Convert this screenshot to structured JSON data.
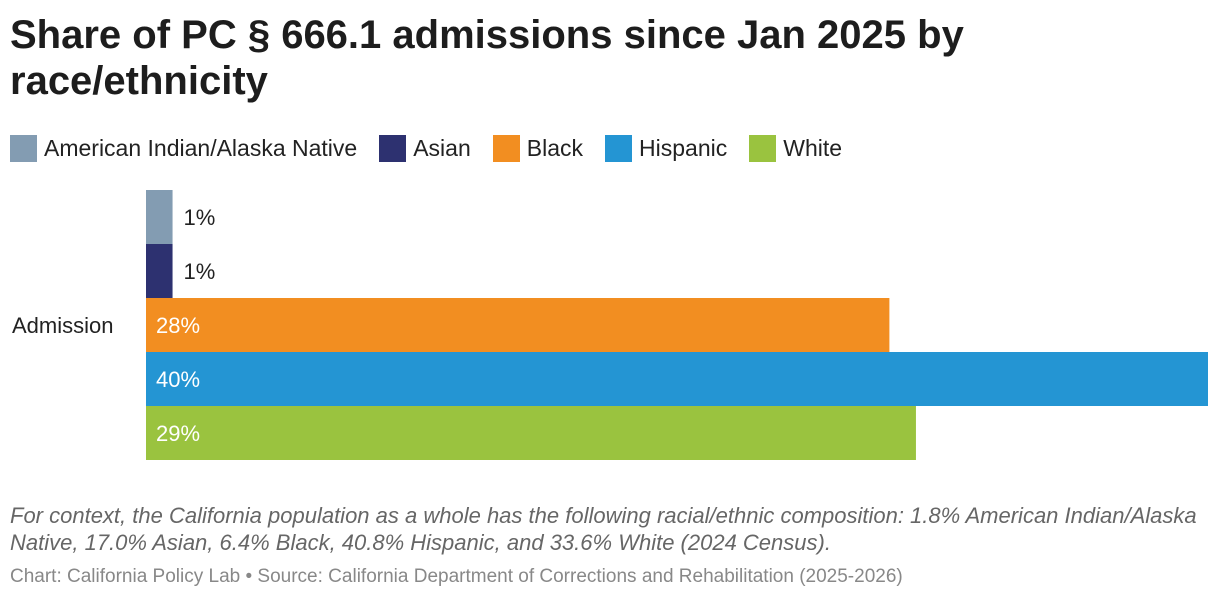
{
  "title": "Share of PC § 666.1 admissions since Jan 2025 by race/ethnicity",
  "note": "For context, the California population as a whole has the following racial/ethnic composition: 1.8% American Indian/Alaska Native, 17.0% Asian, 6.4% Black, 40.8% Hispanic, and 33.6% White (2024 Census).",
  "credit": "Chart: California Policy Lab • Source: California Department of Corrections and Rehabilitation (2025-2026)",
  "chart_data": {
    "type": "bar",
    "orientation": "horizontal",
    "categories": [
      "Admission"
    ],
    "series": [
      {
        "name": "American Indian/Alaska Native",
        "values": [
          1
        ],
        "label": "1%",
        "color": "#839CB2"
      },
      {
        "name": "Asian",
        "values": [
          1
        ],
        "label": "1%",
        "color": "#2D3170"
      },
      {
        "name": "Black",
        "values": [
          28
        ],
        "label": "28%",
        "color": "#F28E21"
      },
      {
        "name": "Hispanic",
        "values": [
          40
        ],
        "label": "40%",
        "color": "#2495D3"
      },
      {
        "name": "White",
        "values": [
          29
        ],
        "label": "29%",
        "color": "#9AC33F"
      }
    ],
    "title": "Share of PC § 666.1 admissions since Jan 2025 by race/ethnicity",
    "xlabel": "",
    "ylabel": "",
    "xlim": [
      0,
      40
    ],
    "grid": false,
    "legend": "top-left"
  }
}
